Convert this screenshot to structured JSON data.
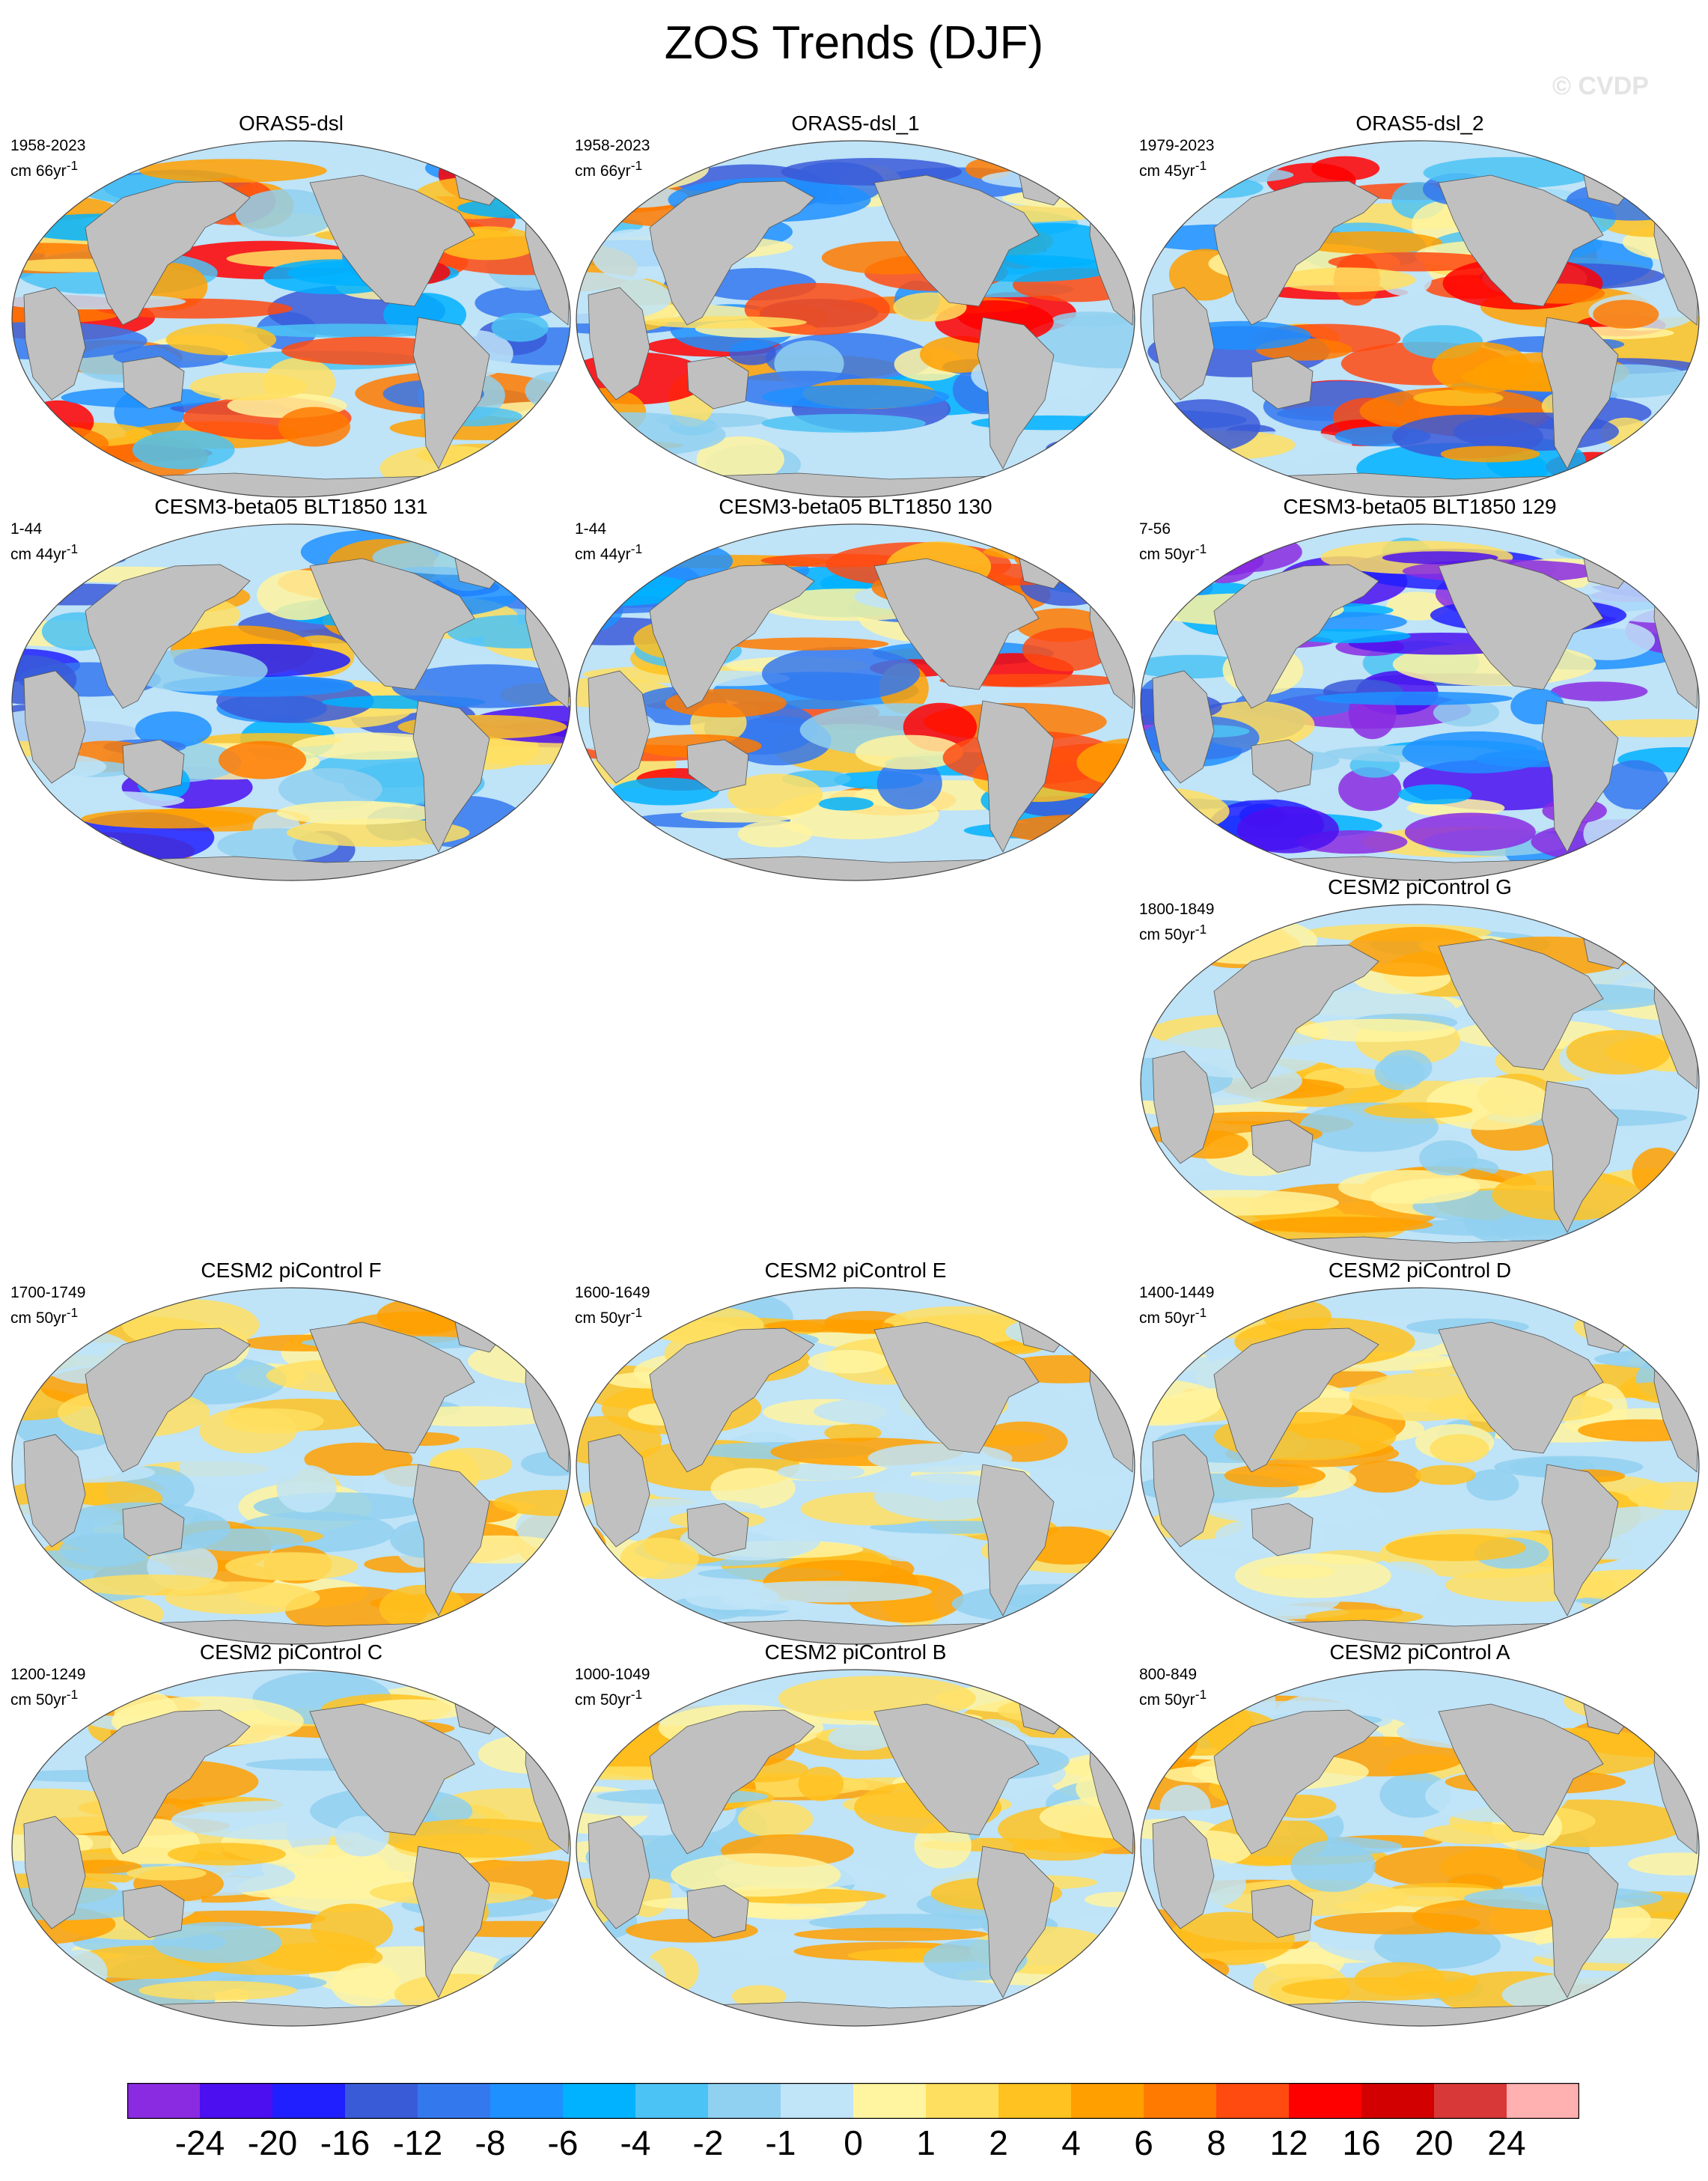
{
  "title": "ZOS Trends (DJF)",
  "watermark": "© CVDP",
  "colors": {
    "land": "#c0c0c0",
    "ocean_base": "#bfe3f7",
    "palette": [
      "#8a2be2",
      "#4b0ff0",
      "#1f1fff",
      "#3a5bd8",
      "#3478ee",
      "#1e90ff",
      "#00b2ff",
      "#4cc3f5",
      "#90d0f0",
      "#c0e4f8",
      "#fff5a0",
      "#ffdf60",
      "#ffc220",
      "#ffa000",
      "#ff7a00",
      "#ff4a10",
      "#ff0000",
      "#d20000",
      "#d83838",
      "#ffb0b0"
    ]
  },
  "colorbar": {
    "labels": [
      "-24",
      "-20",
      "-16",
      "-12",
      "-8",
      "-6",
      "-4",
      "-2",
      "-1",
      "0",
      "1",
      "2",
      "4",
      "6",
      "8",
      "12",
      "16",
      "20",
      "24"
    ]
  },
  "panels": [
    {
      "title": "ORAS5-dsl",
      "period": "1958-2023",
      "units": "cm 66yr",
      "units_sup": "-1"
    },
    {
      "title": "ORAS5-dsl_1",
      "period": "1958-2023",
      "units": "cm 66yr",
      "units_sup": "-1"
    },
    {
      "title": "ORAS5-dsl_2",
      "period": "1979-2023",
      "units": "cm 45yr",
      "units_sup": "-1"
    },
    {
      "title": "CESM3-beta05 BLT1850 131",
      "period": "1-44",
      "units": "cm 44yr",
      "units_sup": "-1"
    },
    {
      "title": "CESM3-beta05 BLT1850 130",
      "period": "1-44",
      "units": "cm 44yr",
      "units_sup": "-1"
    },
    {
      "title": "CESM3-beta05 BLT1850 129",
      "period": "7-56",
      "units": "cm 50yr",
      "units_sup": "-1"
    },
    {
      "title": "CESM2 piControl G",
      "period": "1800-1849",
      "units": "cm 50yr",
      "units_sup": "-1"
    },
    {
      "title": "CESM2 piControl F",
      "period": "1700-1749",
      "units": "cm 50yr",
      "units_sup": "-1"
    },
    {
      "title": "CESM2 piControl E",
      "period": "1600-1649",
      "units": "cm 50yr",
      "units_sup": "-1"
    },
    {
      "title": "CESM2 piControl D",
      "period": "1400-1449",
      "units": "cm 50yr",
      "units_sup": "-1"
    },
    {
      "title": "CESM2 piControl C",
      "period": "1200-1249",
      "units": "cm 50yr",
      "units_sup": "-1"
    },
    {
      "title": "CESM2 piControl B",
      "period": "1000-1049",
      "units": "cm 50yr",
      "units_sup": "-1"
    },
    {
      "title": "CESM2 piControl A",
      "period": "800-849",
      "units": "cm 50yr",
      "units_sup": "-1"
    }
  ]
}
